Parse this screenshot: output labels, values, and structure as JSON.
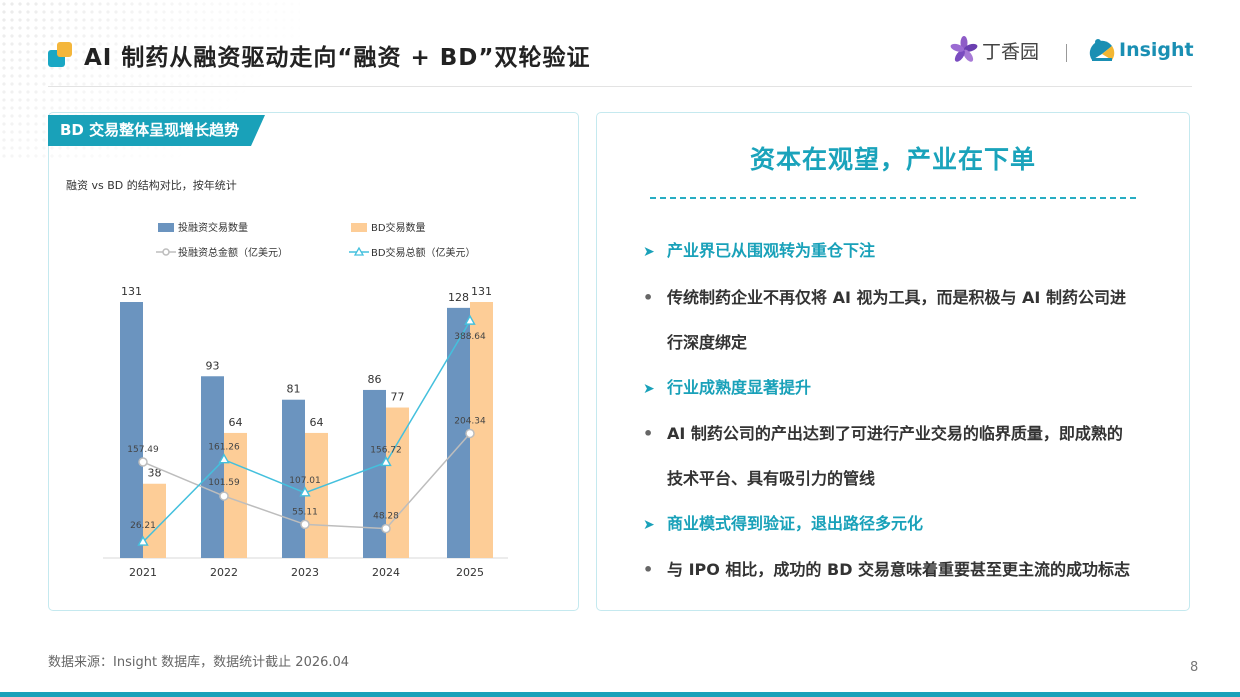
{
  "header": {
    "title": "AI 制药从融资驱动走向“融资 + BD”双轮验证",
    "brand_dingxiangyuan": "丁香园",
    "brand_insight": "Insight"
  },
  "left_panel": {
    "tag": "BD 交易整体呈现增长趋势",
    "subtitle": "融资 vs BD 的结构对比，按年统计"
  },
  "chart_data": {
    "type": "bar",
    "categories": [
      "2021",
      "2022",
      "2023",
      "2024",
      "2025"
    ],
    "series": [
      {
        "name": "投融资交易数量",
        "kind": "bar",
        "color": "#6b94bf",
        "values": [
          131,
          93,
          81,
          86,
          128
        ]
      },
      {
        "name": "BD交易数量",
        "kind": "bar",
        "color": "#fdcd97",
        "values": [
          38,
          64,
          64,
          77,
          131
        ]
      },
      {
        "name": "投融资总金额（亿美元）",
        "kind": "line",
        "marker": "circle",
        "color": "#bdbdbd",
        "values": [
          157.49,
          101.59,
          55.11,
          48.28,
          204.34
        ]
      },
      {
        "name": "BD交易总额（亿美元）",
        "kind": "line",
        "marker": "triangle",
        "color": "#44c0dd",
        "values": [
          26.21,
          161.26,
          107.01,
          156.72,
          388.64
        ]
      }
    ],
    "bar_axis_range": [
      0,
      131
    ],
    "line_axis_range": [
      0,
      420
    ],
    "axes_visible": false,
    "grid": false,
    "legend_position": "top"
  },
  "right_panel": {
    "heading": "资本在观望，产业在下单",
    "points": [
      {
        "kind": "arrow",
        "marker": "➤",
        "text": "产业界已从围观转为重仓下注"
      },
      {
        "kind": "dot",
        "marker": "•",
        "text": "传统制药企业不再仅将 AI 视为工具，而是积极与 AI 制药公司进",
        "cont": "行深度绑定"
      },
      {
        "kind": "arrow",
        "marker": "➤",
        "text": "行业成熟度显著提升"
      },
      {
        "kind": "dot",
        "marker": "•",
        "text": "AI 制药公司的产出达到了可进行产业交易的临界质量，即成熟的",
        "cont": "技术平台、具有吸引力的管线"
      },
      {
        "kind": "arrow",
        "marker": "➤",
        "text": "商业模式得到验证，退出路径多元化"
      },
      {
        "kind": "dot",
        "marker": "•",
        "text": "与 IPO 相比，成功的 BD 交易意味着重要甚至更主流的成功标志"
      }
    ]
  },
  "footer": {
    "source": "数据来源：Insight 数据库，数据统计截止 2026.04",
    "page_number": "8"
  }
}
